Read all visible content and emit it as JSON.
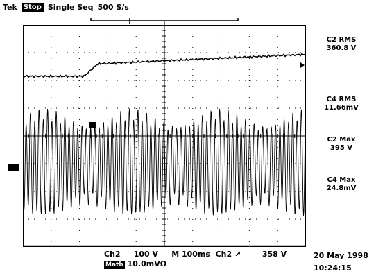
{
  "header": {
    "brand": "Tek",
    "state": "Stop",
    "mode": "Single Seq",
    "rate": "500 S/s"
  },
  "measurements": [
    {
      "name": "C2 RMS",
      "value": "360.8 V"
    },
    {
      "name": "C4 RMS",
      "value": "11.66mV"
    },
    {
      "name": "C2 Max",
      "value": "395 V"
    },
    {
      "name": "C4 Max",
      "value": "24.8mV"
    }
  ],
  "bottom": {
    "ch2_label": "Ch2",
    "ch2_scale": "100 V",
    "timebase": "M 100ms",
    "trigger_source": "Ch2",
    "trigger_slope_symbol": "↗",
    "trigger_level": "358 V",
    "math_badge": "Math",
    "math_scale": "10.0mVΩ"
  },
  "datetime": {
    "date": "20 May 1998",
    "time": "10:24:15"
  },
  "display": {
    "trace_color": "#000000",
    "grid_color": "#000000",
    "background": "#ffffff"
  }
}
